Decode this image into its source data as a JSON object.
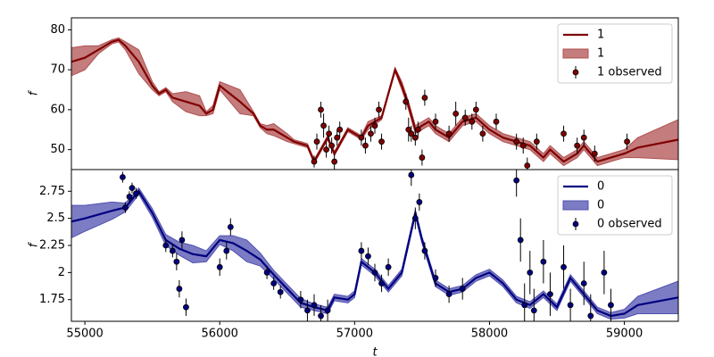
{
  "chart_data": [
    {
      "type": "line",
      "ylabel": "f",
      "xlim": [
        54900,
        59400
      ],
      "ylim": [
        45,
        83
      ],
      "yticks": [
        50,
        60,
        70,
        80
      ],
      "line": {
        "name": "1",
        "color": "#800000",
        "x": [
          54900,
          55000,
          55100,
          55200,
          55250,
          55300,
          55400,
          55500,
          55550,
          55600,
          55650,
          55750,
          55850,
          55900,
          55950,
          56000,
          56150,
          56250,
          56300,
          56350,
          56400,
          56500,
          56550,
          56650,
          56700,
          56750,
          56800,
          56850,
          56900,
          56950,
          57050,
          57100,
          57200,
          57300,
          57350,
          57400,
          57450,
          57550,
          57600,
          57700,
          57800,
          57900,
          58000,
          58100,
          58200,
          58300,
          58400,
          58450,
          58550,
          58650,
          58700,
          58800,
          58900,
          59000,
          59100,
          59400
        ],
        "values": [
          72,
          73,
          75,
          77,
          77.5,
          76,
          72,
          66,
          64,
          65,
          63,
          62,
          61,
          59,
          60,
          66,
          62,
          59,
          56,
          55,
          55,
          53,
          52,
          51,
          47,
          50,
          53,
          49,
          52,
          55,
          53,
          56,
          58,
          70,
          66,
          61,
          55,
          57,
          55,
          53,
          57,
          58,
          55,
          53,
          52,
          51,
          48,
          50,
          47,
          49,
          51,
          47,
          48,
          49,
          50.5,
          52.5
        ]
      },
      "band": {
        "name": "1",
        "color": "#b05050",
        "halfwidth": [
          3.5,
          3,
          1,
          0.5,
          0.5,
          1,
          3,
          1,
          0.5,
          0.5,
          1,
          2.5,
          2.5,
          0.5,
          1,
          1,
          3,
          0.5,
          0.5,
          1,
          1.5,
          1,
          0.5,
          0.5,
          0.5,
          0.5,
          0.5,
          0.5,
          0.5,
          0.5,
          0.5,
          1,
          0.5,
          0.5,
          1,
          1,
          1,
          1,
          1,
          1,
          1,
          1,
          1,
          1,
          1,
          1,
          1,
          1,
          1,
          1,
          1,
          1,
          1,
          1,
          2.5,
          5
        ]
      },
      "observed": {
        "name": "1 observed",
        "color": "#800000",
        "x": [
          56700,
          56720,
          56750,
          56770,
          56790,
          56810,
          56830,
          56850,
          56870,
          56890,
          57050,
          57080,
          57120,
          57150,
          57180,
          57200,
          57380,
          57400,
          57420,
          57450,
          57470,
          57500,
          57520,
          57600,
          57700,
          57750,
          57820,
          57870,
          57900,
          57950,
          58050,
          58200,
          58250,
          58280,
          58350,
          58550,
          58650,
          58700,
          58780,
          59020
        ],
        "values": [
          47,
          52,
          60,
          56,
          50,
          54,
          51,
          47,
          53,
          55,
          53,
          51,
          54,
          56,
          60,
          52,
          62,
          55,
          54,
          53,
          55,
          48,
          63,
          57,
          54,
          59,
          58,
          57,
          60,
          54,
          57,
          52,
          51,
          46,
          52,
          54,
          51,
          53,
          49,
          52
        ],
        "errors": [
          1.5,
          2,
          2,
          3,
          2,
          2,
          2,
          2,
          2,
          2,
          2,
          2,
          2,
          2,
          2,
          2,
          2,
          3,
          2,
          2,
          2,
          2,
          2,
          2,
          2,
          3,
          2,
          2,
          2,
          2,
          2,
          2,
          2,
          2,
          2,
          2,
          2,
          2,
          2,
          2
        ]
      }
    },
    {
      "type": "line",
      "ylabel": "f",
      "xlabel": "t",
      "xlim": [
        54900,
        59400
      ],
      "xticks": [
        55000,
        56000,
        57000,
        58000,
        59000
      ],
      "ylim": [
        1.55,
        2.95
      ],
      "yticks": [
        1.75,
        2.0,
        2.25,
        2.5,
        2.75
      ],
      "line": {
        "name": "0",
        "color": "#000080",
        "x": [
          54900,
          55000,
          55200,
          55300,
          55400,
          55500,
          55600,
          55700,
          55800,
          55900,
          56000,
          56100,
          56200,
          56300,
          56400,
          56500,
          56600,
          56700,
          56800,
          56850,
          56950,
          57000,
          57050,
          57150,
          57250,
          57350,
          57450,
          57500,
          57600,
          57700,
          57800,
          57900,
          58000,
          58100,
          58200,
          58300,
          58400,
          58500,
          58600,
          58700,
          58800,
          58900,
          59000,
          59100,
          59400
        ],
        "values": [
          2.47,
          2.5,
          2.57,
          2.6,
          2.75,
          2.55,
          2.3,
          2.22,
          2.17,
          2.15,
          2.3,
          2.27,
          2.2,
          2.12,
          1.98,
          1.85,
          1.72,
          1.68,
          1.65,
          1.77,
          1.75,
          1.8,
          2.1,
          2.0,
          1.85,
          2.0,
          2.55,
          2.3,
          1.9,
          1.82,
          1.85,
          1.95,
          2.0,
          1.9,
          1.75,
          1.7,
          1.8,
          1.68,
          1.95,
          1.8,
          1.65,
          1.6,
          1.62,
          1.7,
          1.77
        ]
      },
      "band": {
        "name": "0",
        "color": "#5050b0",
        "halfwidth": [
          0.15,
          0.12,
          0.08,
          0.04,
          0.03,
          0.04,
          0.05,
          0.06,
          0.08,
          0.05,
          0.04,
          0.07,
          0.1,
          0.06,
          0.04,
          0.04,
          0.04,
          0.03,
          0.03,
          0.03,
          0.03,
          0.03,
          0.03,
          0.03,
          0.03,
          0.03,
          0.03,
          0.03,
          0.03,
          0.03,
          0.03,
          0.03,
          0.03,
          0.03,
          0.03,
          0.03,
          0.03,
          0.03,
          0.03,
          0.03,
          0.03,
          0.03,
          0.04,
          0.08,
          0.15
        ]
      },
      "observed": {
        "name": "0 observed",
        "color": "#000080",
        "x": [
          55280,
          55300,
          55330,
          55350,
          55380,
          55600,
          55650,
          55680,
          55700,
          55720,
          55750,
          56000,
          56050,
          56080,
          56350,
          56400,
          56450,
          56600,
          56650,
          56700,
          56750,
          56800,
          57050,
          57100,
          57150,
          57200,
          57250,
          57420,
          57450,
          57480,
          57520,
          57600,
          57700,
          57800,
          58200,
          58230,
          58260,
          58300,
          58330,
          58400,
          58450,
          58550,
          58600,
          58700,
          58750,
          58850,
          58900
        ],
        "values": [
          2.88,
          2.6,
          2.7,
          2.78,
          2.73,
          2.25,
          2.2,
          2.1,
          1.85,
          2.3,
          1.68,
          2.05,
          2.2,
          2.42,
          2.0,
          1.9,
          1.82,
          1.75,
          1.65,
          1.7,
          1.6,
          1.65,
          2.2,
          2.15,
          2.0,
          1.9,
          2.05,
          2.9,
          2.5,
          2.65,
          2.2,
          1.95,
          1.8,
          1.85,
          2.85,
          2.3,
          1.7,
          2.0,
          1.65,
          2.1,
          1.8,
          2.05,
          1.7,
          1.9,
          1.6,
          2.0,
          1.7
        ],
        "errors": [
          0.05,
          0.05,
          0.05,
          0.05,
          0.05,
          0.06,
          0.06,
          0.08,
          0.08,
          0.08,
          0.08,
          0.08,
          0.08,
          0.08,
          0.06,
          0.06,
          0.06,
          0.08,
          0.1,
          0.1,
          0.1,
          0.1,
          0.08,
          0.08,
          0.08,
          0.08,
          0.08,
          0.1,
          0.1,
          0.08,
          0.08,
          0.08,
          0.08,
          0.1,
          0.15,
          0.2,
          0.2,
          0.2,
          0.2,
          0.2,
          0.2,
          0.2,
          0.15,
          0.2,
          0.2,
          0.2,
          0.15
        ]
      }
    }
  ]
}
